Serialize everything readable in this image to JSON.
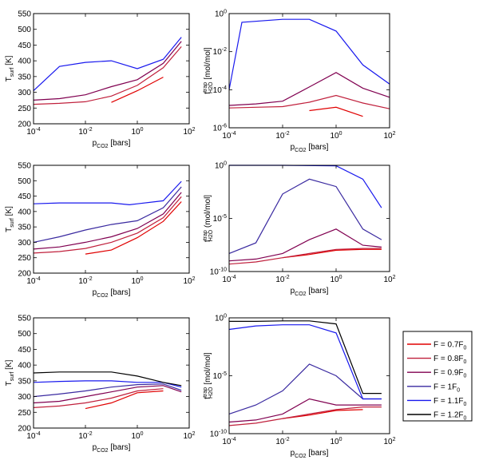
{
  "legend": {
    "entries": [
      {
        "prefix": "F = 0.7F",
        "sub": "0",
        "color": "#e00000"
      },
      {
        "prefix": "F = 0.8F",
        "sub": "0",
        "color": "#c0203c"
      },
      {
        "prefix": "F = 0.9F",
        "sub": "0",
        "color": "#800050"
      },
      {
        "prefix": "F = 1F",
        "sub": "0",
        "color": "#3a2aa0"
      },
      {
        "prefix": "F = 1.1F",
        "sub": "0",
        "color": "#1818ee"
      },
      {
        "prefix": "F = 1.2F",
        "sub": "0",
        "color": "#000000"
      }
    ]
  },
  "labels": {
    "xlabel_main": "p",
    "xlabel_sub": "CO2",
    "xlabel_unit": " [bars]",
    "ylabel_T_main": "T",
    "ylabel_T_sub": "surf",
    "ylabel_T_unit": " [K]",
    "ylabel_f_main": "f",
    "ylabel_f_sup": "trap",
    "ylabel_f_sub": "H2O",
    "ylabel_f_unit": " [mol/mol]",
    "ylabel_f2_unit": " (mol/mol]"
  },
  "chart_data": [
    {
      "type": "line",
      "panel": "row1-temperature",
      "xscale": "log",
      "xlim": [
        0.0001,
        100
      ],
      "ylim": [
        200,
        550
      ],
      "xticks": [
        "10-4",
        "10-2",
        "100",
        "102"
      ],
      "yticks": [
        "200",
        "250",
        "300",
        "350",
        "400",
        "450",
        "500",
        "550"
      ],
      "series": [
        {
          "legend_index": 0,
          "x": [
            0.1,
            1,
            10
          ],
          "y": [
            268,
            305,
            348
          ]
        },
        {
          "legend_index": 1,
          "x": [
            0.0001,
            0.001,
            0.01,
            0.1,
            1,
            10,
            50
          ],
          "y": [
            262,
            265,
            270,
            288,
            322,
            378,
            445
          ]
        },
        {
          "legend_index": 2,
          "x": [
            0.0001,
            0.001,
            0.01,
            0.1,
            1,
            10,
            50
          ],
          "y": [
            275,
            280,
            292,
            318,
            340,
            392,
            462
          ]
        },
        {
          "legend_index": 4,
          "x": [
            0.0001,
            0.001,
            0.01,
            0.1,
            1,
            10,
            50
          ],
          "y": [
            305,
            382,
            395,
            400,
            375,
            405,
            475
          ]
        }
      ]
    },
    {
      "type": "line",
      "panel": "row1-fraction",
      "xscale": "log",
      "yscale": "log",
      "xlim": [
        0.0001,
        100
      ],
      "ylim": [
        1e-06,
        1
      ],
      "xticks": [
        "10-4",
        "10-2",
        "100",
        "102"
      ],
      "yticks": [
        "10-6",
        "10-4",
        "10-2",
        "100"
      ],
      "series": [
        {
          "legend_index": 0,
          "x": [
            0.1,
            1,
            10
          ],
          "y": [
            8e-06,
            1.2e-05,
            4e-06
          ]
        },
        {
          "legend_index": 1,
          "x": [
            0.0001,
            0.001,
            0.01,
            0.1,
            1,
            10,
            100
          ],
          "y": [
            1.1e-05,
            1.2e-05,
            1.3e-05,
            2.2e-05,
            5e-05,
            2e-05,
            1e-05
          ]
        },
        {
          "legend_index": 2,
          "x": [
            0.0001,
            0.001,
            0.01,
            0.1,
            1,
            10,
            100
          ],
          "y": [
            1.5e-05,
            1.8e-05,
            2.5e-05,
            0.00014,
            0.0008,
            0.00012,
            4e-05
          ]
        },
        {
          "legend_index": 4,
          "x": [
            0.0001,
            0.0003,
            0.01,
            0.1,
            1,
            10,
            100
          ],
          "y": [
            0.0001,
            0.35,
            0.5,
            0.5,
            0.12,
            0.002,
            0.0002
          ]
        }
      ]
    },
    {
      "type": "line",
      "panel": "row2-temperature",
      "xscale": "log",
      "xlim": [
        0.0001,
        100
      ],
      "ylim": [
        200,
        550
      ],
      "xticks": [
        "10-4",
        "10-2",
        "100",
        "102"
      ],
      "yticks": [
        "200",
        "250",
        "300",
        "350",
        "400",
        "450",
        "500",
        "550"
      ],
      "series": [
        {
          "legend_index": 0,
          "x": [
            0.01,
            0.1,
            1,
            10,
            50
          ],
          "y": [
            262,
            275,
            315,
            368,
            432
          ]
        },
        {
          "legend_index": 1,
          "x": [
            0.0001,
            0.001,
            0.01,
            0.1,
            1,
            10,
            50
          ],
          "y": [
            265,
            270,
            280,
            300,
            330,
            380,
            448
          ]
        },
        {
          "legend_index": 2,
          "x": [
            0.0001,
            0.001,
            0.01,
            0.1,
            1,
            10,
            50
          ],
          "y": [
            278,
            285,
            300,
            318,
            345,
            392,
            462
          ]
        },
        {
          "legend_index": 3,
          "x": [
            0.0001,
            0.001,
            0.01,
            0.1,
            1,
            10,
            50
          ],
          "y": [
            300,
            318,
            340,
            358,
            370,
            412,
            480
          ]
        },
        {
          "legend_index": 4,
          "x": [
            0.0001,
            0.001,
            0.01,
            0.1,
            0.5,
            1,
            10,
            50
          ],
          "y": [
            425,
            428,
            428,
            428,
            422,
            425,
            435,
            498
          ]
        }
      ]
    },
    {
      "type": "line",
      "panel": "row2-fraction",
      "xscale": "log",
      "yscale": "log",
      "xlim": [
        0.0001,
        100
      ],
      "ylim": [
        1e-10,
        1
      ],
      "xticks": [
        "10-4",
        "10-2",
        "100",
        "102"
      ],
      "yticks": [
        "10-10",
        "10-5",
        "100"
      ],
      "series": [
        {
          "legend_index": 0,
          "x": [
            0.01,
            0.1,
            1,
            10,
            50
          ],
          "y": [
            2e-09,
            4e-09,
            1e-08,
            1.2e-08,
            1.2e-08
          ]
        },
        {
          "legend_index": 1,
          "x": [
            0.0001,
            0.001,
            0.01,
            0.1,
            1,
            10,
            50
          ],
          "y": [
            5e-10,
            8e-10,
            2e-09,
            5e-09,
            1.2e-08,
            1.5e-08,
            1.5e-08
          ]
        },
        {
          "legend_index": 2,
          "x": [
            0.0001,
            0.001,
            0.01,
            0.1,
            1,
            10,
            50
          ],
          "y": [
            1e-09,
            1.5e-09,
            5e-09,
            1e-07,
            1e-06,
            3e-08,
            2e-08
          ]
        },
        {
          "legend_index": 3,
          "x": [
            0.0001,
            0.001,
            0.01,
            0.1,
            1,
            10,
            50
          ],
          "y": [
            5e-09,
            5e-08,
            0.002,
            0.05,
            0.01,
            1e-06,
            1e-07
          ]
        },
        {
          "legend_index": 4,
          "x": [
            0.0001,
            0.01,
            1,
            10,
            50
          ],
          "y": [
            1,
            1,
            0.9,
            0.05,
            0.0001
          ]
        }
      ]
    },
    {
      "type": "line",
      "panel": "row3-temperature",
      "xscale": "log",
      "xlim": [
        0.0001,
        100
      ],
      "ylim": [
        200,
        550
      ],
      "xticks": [
        "10-4",
        "10-2",
        "100",
        "102"
      ],
      "yticks": [
        "200",
        "250",
        "300",
        "350",
        "400",
        "450",
        "500",
        "550"
      ],
      "series": [
        {
          "legend_index": 0,
          "x": [
            0.01,
            0.1,
            1,
            10
          ],
          "y": [
            262,
            280,
            312,
            318
          ]
        },
        {
          "legend_index": 1,
          "x": [
            0.0001,
            0.001,
            0.01,
            0.1,
            1,
            10
          ],
          "y": [
            265,
            270,
            280,
            295,
            318,
            325
          ]
        },
        {
          "legend_index": 2,
          "x": [
            0.0001,
            0.001,
            0.01,
            0.1,
            1,
            10,
            50
          ],
          "y": [
            280,
            285,
            300,
            315,
            330,
            335,
            315
          ]
        },
        {
          "legend_index": 3,
          "x": [
            0.0001,
            0.001,
            0.01,
            0.1,
            1,
            10,
            50
          ],
          "y": [
            300,
            308,
            318,
            330,
            338,
            340,
            320
          ]
        },
        {
          "legend_index": 4,
          "x": [
            0.0001,
            0.001,
            0.01,
            0.1,
            1,
            10,
            50
          ],
          "y": [
            345,
            348,
            350,
            350,
            345,
            345,
            330
          ]
        },
        {
          "legend_index": 5,
          "x": [
            0.0001,
            0.001,
            0.01,
            0.1,
            1,
            10,
            50
          ],
          "y": [
            375,
            378,
            378,
            378,
            365,
            345,
            335
          ]
        }
      ]
    },
    {
      "type": "line",
      "panel": "row3-fraction",
      "xscale": "log",
      "yscale": "log",
      "xlim": [
        0.0001,
        100
      ],
      "ylim": [
        1e-10,
        1
      ],
      "xticks": [
        "10-4",
        "10-2",
        "100",
        "102"
      ],
      "yticks": [
        "10-10",
        "10-5",
        "100"
      ],
      "series": [
        {
          "legend_index": 0,
          "x": [
            0.01,
            0.1,
            1,
            10
          ],
          "y": [
            2e-09,
            4e-09,
            1e-08,
            1.2e-08
          ]
        },
        {
          "legend_index": 1,
          "x": [
            0.0001,
            0.001,
            0.01,
            0.1,
            1,
            10,
            50
          ],
          "y": [
            5e-10,
            8e-10,
            2e-09,
            5e-09,
            1.2e-08,
            2e-08,
            2e-08
          ]
        },
        {
          "legend_index": 2,
          "x": [
            0.0001,
            0.001,
            0.01,
            0.1,
            1,
            10,
            50
          ],
          "y": [
            1e-09,
            1.5e-09,
            5e-09,
            1e-07,
            3e-08,
            3e-08,
            3e-08
          ]
        },
        {
          "legend_index": 3,
          "x": [
            0.0001,
            0.001,
            0.01,
            0.1,
            1,
            10,
            50
          ],
          "y": [
            5e-09,
            3e-08,
            5e-07,
            0.0001,
            1e-05,
            1e-07,
            1e-07
          ]
        },
        {
          "legend_index": 4,
          "x": [
            0.0001,
            0.001,
            0.01,
            0.1,
            1,
            10,
            50
          ],
          "y": [
            0.1,
            0.2,
            0.25,
            0.25,
            0.05,
            1e-07,
            1e-07
          ]
        },
        {
          "legend_index": 5,
          "x": [
            0.0001,
            0.001,
            0.01,
            0.1,
            1,
            10,
            50
          ],
          "y": [
            0.5,
            0.5,
            0.55,
            0.55,
            0.3,
            3e-07,
            3e-07
          ]
        }
      ]
    }
  ]
}
